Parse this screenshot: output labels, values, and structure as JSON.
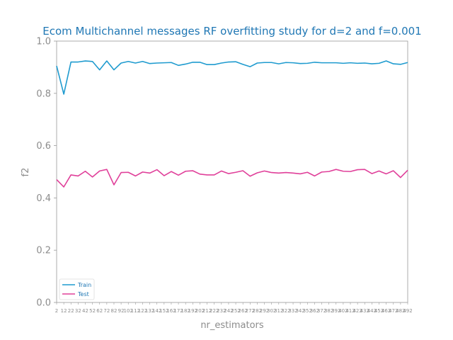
{
  "chart_data": {
    "type": "line",
    "title": "Ecom Multichannel messages RF overfitting study for d=2 and f=0.001",
    "xlabel": "nr_estimators",
    "ylabel": "f2",
    "ylim": [
      0.0,
      1.0
    ],
    "yticks": [
      "0.0",
      "0.2",
      "0.4",
      "0.6",
      "0.8",
      "1.0"
    ],
    "x": [
      2,
      12,
      22,
      32,
      42,
      52,
      62,
      72,
      82,
      92,
      102,
      112,
      122,
      132,
      142,
      152,
      162,
      172,
      182,
      192,
      202,
      212,
      222,
      232,
      242,
      252,
      262,
      272,
      282,
      292,
      302,
      312,
      322,
      332,
      342,
      352,
      362,
      372,
      382,
      392,
      402,
      412,
      422,
      432,
      442,
      452,
      462,
      472,
      482,
      492
    ],
    "grid": false,
    "legend_position": "lower-left",
    "series": [
      {
        "name": "Train",
        "color": "#1f9bcf",
        "values": [
          0.905,
          0.797,
          0.92,
          0.92,
          0.924,
          0.922,
          0.89,
          0.924,
          0.89,
          0.916,
          0.922,
          0.916,
          0.922,
          0.914,
          0.916,
          0.917,
          0.918,
          0.907,
          0.912,
          0.919,
          0.919,
          0.91,
          0.91,
          0.916,
          0.92,
          0.921,
          0.911,
          0.902,
          0.916,
          0.918,
          0.918,
          0.913,
          0.918,
          0.917,
          0.914,
          0.915,
          0.919,
          0.917,
          0.917,
          0.917,
          0.915,
          0.917,
          0.915,
          0.916,
          0.913,
          0.915,
          0.924,
          0.913,
          0.911,
          0.918
        ]
      },
      {
        "name": "Test",
        "color": "#e0409a",
        "values": [
          0.47,
          0.442,
          0.488,
          0.484,
          0.502,
          0.48,
          0.503,
          0.509,
          0.45,
          0.497,
          0.498,
          0.484,
          0.499,
          0.495,
          0.508,
          0.485,
          0.501,
          0.487,
          0.502,
          0.504,
          0.491,
          0.488,
          0.488,
          0.503,
          0.493,
          0.498,
          0.504,
          0.483,
          0.496,
          0.503,
          0.497,
          0.495,
          0.497,
          0.495,
          0.492,
          0.498,
          0.484,
          0.499,
          0.501,
          0.509,
          0.502,
          0.501,
          0.508,
          0.509,
          0.493,
          0.503,
          0.492,
          0.504,
          0.478,
          0.506
        ]
      }
    ]
  }
}
